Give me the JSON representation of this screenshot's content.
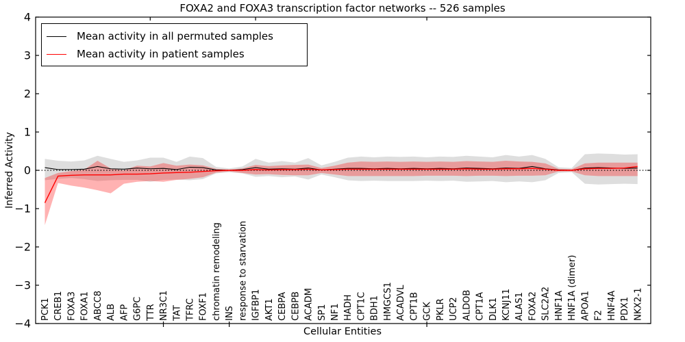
{
  "figure": {
    "title": "FOXA2 and FOXA3 transcription factor networks -- 526 samples",
    "xlabel": "Cellular Entities",
    "ylabel": "Inferred Activity"
  },
  "legend": {
    "entries": [
      {
        "label": "Mean activity in all permuted samples",
        "color": "#000000"
      },
      {
        "label": "Mean activity in patient samples",
        "color": "#ff0000"
      }
    ]
  },
  "chart_data": {
    "type": "line",
    "title": "FOXA2 and FOXA3 transcription factor networks -- 526 samples",
    "xlabel": "Cellular Entities",
    "ylabel": "Inferred Activity",
    "ylim": [
      -4,
      4
    ],
    "yticks": [
      -4,
      -3,
      -2,
      -1,
      0,
      1,
      2,
      3,
      4
    ],
    "grid": false,
    "zero_reference_line": 0,
    "legend_position": "upper left",
    "categories": [
      "PCK1",
      "CREB1",
      "FOXA3",
      "FOXA1",
      "ABCC8",
      "ALB",
      "AFP",
      "G6PC",
      "TTR",
      "NR3C1",
      "TAT",
      "TFRC",
      "FOXF1",
      "chromatin remodeling",
      "INS",
      "response to starvation",
      "IGFBP1",
      "AKT1",
      "CEBPA",
      "CEBPB",
      "ACADM",
      "SP1",
      "NF1",
      "HADH",
      "CPT1C",
      "BDH1",
      "HMGCS1",
      "ACADVL",
      "CPT1B",
      "GCK",
      "PKLR",
      "UCP2",
      "ALDOB",
      "CPT1A",
      "DLK1",
      "KCNJ11",
      "ALAS1",
      "FOXA2",
      "SLC2A2",
      "HNF1A",
      "HNF1A (dimer)",
      "APOA1",
      "F2",
      "HNF4A",
      "PDX1",
      "NKX2-1"
    ],
    "series": [
      {
        "name": "Mean activity in all permuted samples",
        "color": "#000000",
        "line_width": 1.1,
        "band_color": "rgba(0,0,0,0.13)",
        "values": [
          0.07,
          0.02,
          0.02,
          0.03,
          0.1,
          0.04,
          0.03,
          0.06,
          0.04,
          0.05,
          0.02,
          0.08,
          0.07,
          0.01,
          0.0,
          0.02,
          0.07,
          0.03,
          0.04,
          0.03,
          0.06,
          0.01,
          0.03,
          0.05,
          0.05,
          0.04,
          0.05,
          0.04,
          0.05,
          0.04,
          0.05,
          0.04,
          0.06,
          0.05,
          0.04,
          0.06,
          0.05,
          0.1,
          0.04,
          0.01,
          0.0,
          0.06,
          0.07,
          0.06,
          0.05,
          0.06
        ],
        "band_upper": [
          0.3,
          0.25,
          0.23,
          0.26,
          0.38,
          0.3,
          0.22,
          0.26,
          0.33,
          0.33,
          0.22,
          0.36,
          0.32,
          0.09,
          0.05,
          0.1,
          0.3,
          0.2,
          0.24,
          0.2,
          0.32,
          0.13,
          0.22,
          0.33,
          0.36,
          0.34,
          0.36,
          0.35,
          0.36,
          0.34,
          0.36,
          0.35,
          0.38,
          0.36,
          0.34,
          0.4,
          0.36,
          0.4,
          0.3,
          0.08,
          0.06,
          0.42,
          0.44,
          0.43,
          0.41,
          0.42
        ],
        "band_lower": [
          -0.26,
          -0.22,
          -0.2,
          -0.23,
          -0.28,
          -0.26,
          -0.25,
          -0.25,
          -0.3,
          -0.25,
          -0.24,
          -0.26,
          -0.23,
          -0.08,
          -0.05,
          -0.08,
          -0.17,
          -0.15,
          -0.18,
          -0.16,
          -0.24,
          -0.11,
          -0.18,
          -0.26,
          -0.28,
          -0.27,
          -0.28,
          -0.28,
          -0.28,
          -0.27,
          -0.28,
          -0.27,
          -0.3,
          -0.29,
          -0.28,
          -0.31,
          -0.29,
          -0.31,
          -0.26,
          -0.07,
          -0.05,
          -0.35,
          -0.37,
          -0.36,
          -0.35,
          -0.36
        ]
      },
      {
        "name": "Mean activity in patient samples",
        "color": "#ff0000",
        "line_width": 1.4,
        "band_color": "rgba(255,0,0,0.30)",
        "values": [
          -0.85,
          -0.15,
          -0.13,
          -0.12,
          -0.12,
          -0.12,
          -0.1,
          -0.1,
          -0.09,
          -0.07,
          -0.06,
          -0.05,
          -0.03,
          -0.01,
          0.0,
          0.0,
          0.02,
          0.01,
          0.02,
          0.02,
          0.03,
          0.01,
          0.02,
          0.03,
          0.03,
          0.03,
          0.03,
          0.03,
          0.03,
          0.03,
          0.03,
          0.03,
          0.04,
          0.03,
          0.03,
          0.04,
          0.04,
          0.05,
          0.03,
          0.0,
          0.0,
          0.04,
          0.05,
          0.05,
          0.06,
          0.1
        ],
        "band_upper": [
          -0.2,
          -0.07,
          -0.02,
          0.02,
          0.25,
          0.05,
          0.0,
          0.12,
          0.1,
          0.19,
          0.12,
          0.15,
          0.13,
          0.04,
          0.02,
          0.05,
          0.14,
          0.11,
          0.13,
          0.14,
          0.15,
          0.06,
          0.12,
          0.2,
          0.23,
          0.22,
          0.23,
          0.22,
          0.23,
          0.22,
          0.23,
          0.22,
          0.24,
          0.23,
          0.22,
          0.25,
          0.23,
          0.22,
          0.18,
          0.04,
          0.03,
          0.18,
          0.2,
          0.2,
          0.2,
          0.2
        ],
        "band_lower": [
          -1.43,
          -0.33,
          -0.4,
          -0.45,
          -0.52,
          -0.6,
          -0.35,
          -0.3,
          -0.28,
          -0.3,
          -0.25,
          -0.22,
          -0.18,
          -0.06,
          -0.03,
          -0.07,
          -0.11,
          -0.1,
          -0.12,
          -0.13,
          -0.13,
          -0.07,
          -0.11,
          -0.15,
          -0.15,
          -0.15,
          -0.15,
          -0.15,
          -0.15,
          -0.14,
          -0.14,
          -0.14,
          -0.15,
          -0.14,
          -0.14,
          -0.15,
          -0.14,
          -0.14,
          -0.13,
          -0.03,
          -0.03,
          -0.13,
          -0.15,
          -0.15,
          -0.15,
          -0.15
        ]
      }
    ]
  }
}
